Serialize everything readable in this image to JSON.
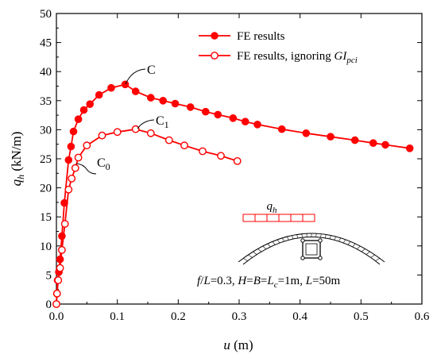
{
  "chart_data": {
    "type": "line",
    "xlabel": {
      "main": "u",
      "unit": " (m)"
    },
    "ylabel": {
      "main": "q",
      "sub": "h",
      "unit": " (kN/m)"
    },
    "xlim": [
      0,
      0.6
    ],
    "ylim": [
      0,
      50
    ],
    "xticks": [
      "0.0",
      "0.1",
      "0.2",
      "0.3",
      "0.4",
      "0.5",
      "0.6"
    ],
    "yticks": [
      "0",
      "5",
      "10",
      "15",
      "20",
      "25",
      "30",
      "35",
      "40",
      "45",
      "50"
    ],
    "grid": false,
    "legend_position": "top-right",
    "series": [
      {
        "name": "FE results",
        "marker": "filled-circle",
        "color": "#ff0000",
        "points": [
          [
            0.0,
            0.0
          ],
          [
            0.0008,
            1.8
          ],
          [
            0.002,
            4.1
          ],
          [
            0.004,
            5.5
          ],
          [
            0.006,
            7.7
          ],
          [
            0.009,
            11.7
          ],
          [
            0.013,
            17.4
          ],
          [
            0.02,
            24.8
          ],
          [
            0.024,
            27.1
          ],
          [
            0.028,
            29.7
          ],
          [
            0.036,
            31.8
          ],
          [
            0.045,
            33.4
          ],
          [
            0.055,
            34.4
          ],
          [
            0.07,
            36.0
          ],
          [
            0.09,
            37.2
          ],
          [
            0.113,
            37.8
          ],
          [
            0.13,
            36.6
          ],
          [
            0.155,
            35.5
          ],
          [
            0.175,
            35.0
          ],
          [
            0.195,
            34.5
          ],
          [
            0.22,
            33.9
          ],
          [
            0.245,
            33.1
          ],
          [
            0.265,
            32.6
          ],
          [
            0.29,
            32.0
          ],
          [
            0.31,
            31.4
          ],
          [
            0.33,
            30.9
          ],
          [
            0.37,
            30.1
          ],
          [
            0.41,
            29.4
          ],
          [
            0.45,
            28.8
          ],
          [
            0.49,
            28.2
          ],
          [
            0.52,
            27.7
          ],
          [
            0.54,
            27.4
          ],
          [
            0.58,
            26.8
          ]
        ]
      },
      {
        "name": "FE results, ignoring GI_pci",
        "marker": "open-circle",
        "color": "#ff0000",
        "points": [
          [
            0.0,
            0.0
          ],
          [
            0.001,
            1.8
          ],
          [
            0.003,
            4.1
          ],
          [
            0.006,
            6.2
          ],
          [
            0.009,
            9.3
          ],
          [
            0.014,
            13.8
          ],
          [
            0.02,
            19.7
          ],
          [
            0.025,
            21.6
          ],
          [
            0.031,
            23.4
          ],
          [
            0.036,
            25.2
          ],
          [
            0.05,
            27.3
          ],
          [
            0.075,
            29.0
          ],
          [
            0.1,
            29.6
          ],
          [
            0.13,
            30.1
          ],
          [
            0.155,
            29.4
          ],
          [
            0.185,
            28.2
          ],
          [
            0.21,
            27.3
          ],
          [
            0.24,
            26.3
          ],
          [
            0.27,
            25.5
          ],
          [
            0.297,
            24.6
          ]
        ]
      }
    ],
    "legend_labels": [
      {
        "main": "FE results"
      },
      {
        "main": "FE results, ignoring ",
        "italic": "GI",
        "sub": "pci"
      }
    ],
    "annotations": [
      {
        "label": "C",
        "sub": "",
        "at": [
          0.113,
          37.8
        ]
      },
      {
        "label": "C",
        "sub": "1",
        "at": [
          0.13,
          30.1
        ]
      },
      {
        "label": "C",
        "sub": "0",
        "at": [
          0.022,
          24.8
        ]
      }
    ],
    "inset": {
      "load_label": {
        "main": "q",
        "sub": "h"
      },
      "caption": {
        "f": "f",
        "f_rest": "/",
        "L1": "L",
        "eq1": "=0.3, ",
        "H": "H",
        "eq2": "=",
        "B": "B",
        "eq3": "=",
        "Lc": "L",
        "Lc_sub": "c",
        "eq4": "=1m, ",
        "L2": "L",
        "eq5": "=50m"
      }
    }
  }
}
